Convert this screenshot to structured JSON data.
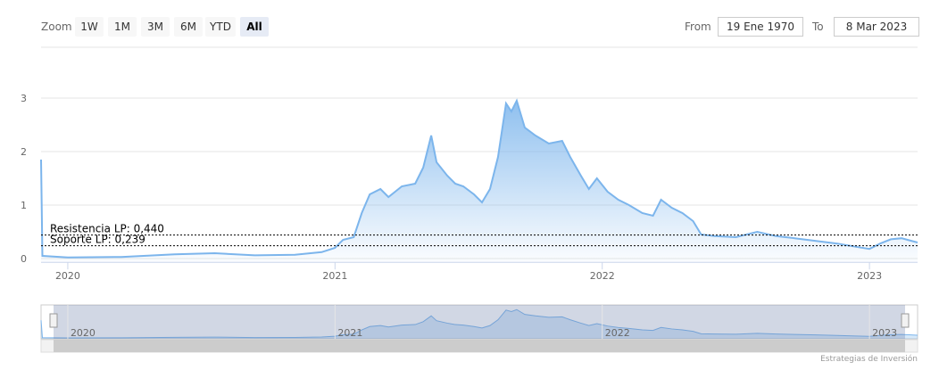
{
  "range_selector": {
    "zoom_label": "Zoom",
    "buttons": [
      "1W",
      "1M",
      "3M",
      "6M",
      "YTD",
      "All"
    ],
    "active": 5,
    "from_label": "From",
    "from": "19 Ene 1970",
    "to_label": "To",
    "to": "8 Mar 2023"
  },
  "chart_data": {
    "type": "area",
    "color": "#7cb5ec",
    "x": [
      2019.9,
      2019.905,
      2020.0,
      2020.2,
      2020.4,
      2020.55,
      2020.7,
      2020.85,
      2020.95,
      2021.0,
      2021.03,
      2021.07,
      2021.1,
      2021.13,
      2021.17,
      2021.2,
      2021.25,
      2021.3,
      2021.33,
      2021.36,
      2021.38,
      2021.42,
      2021.45,
      2021.48,
      2021.52,
      2021.55,
      2021.58,
      2021.61,
      2021.64,
      2021.66,
      2021.68,
      2021.71,
      2021.75,
      2021.8,
      2021.85,
      2021.88,
      2021.92,
      2021.95,
      2021.98,
      2022.02,
      2022.06,
      2022.1,
      2022.15,
      2022.19,
      2022.22,
      2022.26,
      2022.3,
      2022.34,
      2022.37,
      2022.42,
      2022.5,
      2022.58,
      2022.65,
      2022.72,
      2022.8,
      2022.88,
      2022.95,
      2023.0,
      2023.04,
      2023.08,
      2023.12,
      2023.18
    ],
    "values": [
      1.85,
      0.05,
      0.02,
      0.03,
      0.08,
      0.1,
      0.06,
      0.07,
      0.12,
      0.2,
      0.35,
      0.4,
      0.85,
      1.2,
      1.3,
      1.15,
      1.35,
      1.4,
      1.7,
      2.3,
      1.8,
      1.55,
      1.4,
      1.35,
      1.2,
      1.05,
      1.3,
      1.9,
      2.9,
      2.75,
      2.95,
      2.45,
      2.3,
      2.15,
      2.2,
      1.9,
      1.55,
      1.3,
      1.5,
      1.25,
      1.1,
      1.0,
      0.85,
      0.8,
      1.1,
      0.95,
      0.85,
      0.7,
      0.45,
      0.42,
      0.4,
      0.5,
      0.42,
      0.38,
      0.33,
      0.28,
      0.22,
      0.18,
      0.28,
      0.36,
      0.38,
      0.3
    ],
    "xlim": [
      2019.9,
      2023.18
    ],
    "xticks": [
      2020,
      2021,
      2022,
      2023
    ],
    "ylim": [
      -0.07,
      3.25
    ],
    "yticks": [
      0,
      1,
      2,
      3
    ],
    "grid": true,
    "plot_lines": [
      {
        "value": 0.44,
        "label": "Resistencia LP: 0,440"
      },
      {
        "value": 0.239,
        "label": "Soporte LP: 0,239"
      }
    ]
  },
  "credits": "Estrategias de Inversión"
}
